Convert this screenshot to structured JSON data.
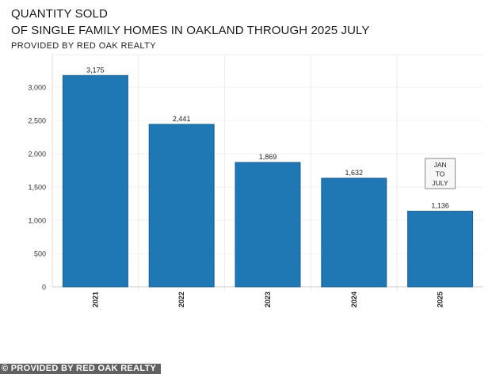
{
  "header": {
    "title_line1": "QUANTITY SOLD",
    "title_line2": "OF SINGLE FAMILY HOMES IN OAKLAND THROUGH 2025 JULY",
    "subtitle": "PROVIDED BY RED OAK REALTY"
  },
  "watermark": "© PROVIDED BY RED OAK REALTY",
  "chart_data": {
    "type": "bar",
    "title": "QUANTITY SOLD OF SINGLE FAMILY HOMES IN OAKLAND THROUGH 2025 JULY",
    "subtitle": "PROVIDED BY RED OAK REALTY",
    "categories": [
      "2021",
      "2022",
      "2023",
      "2024",
      "2025"
    ],
    "values": [
      3175,
      2441,
      1869,
      1632,
      1136
    ],
    "value_labels": [
      "3,175",
      "2,441",
      "1,869",
      "1,632",
      "1,136"
    ],
    "xlabel": "",
    "ylabel": "",
    "ylim": [
      0,
      3000
    ],
    "yticks": [
      0,
      500,
      1000,
      1500,
      2000,
      2500,
      3000
    ],
    "ytick_labels": [
      "0",
      "500",
      "1,000",
      "1,500",
      "2,000",
      "2,500",
      "3,000"
    ],
    "bar_color": "#1f77b4",
    "grid": true,
    "annotation": {
      "category": "2025",
      "lines": [
        "JAN",
        "TO",
        "JULY"
      ]
    }
  }
}
